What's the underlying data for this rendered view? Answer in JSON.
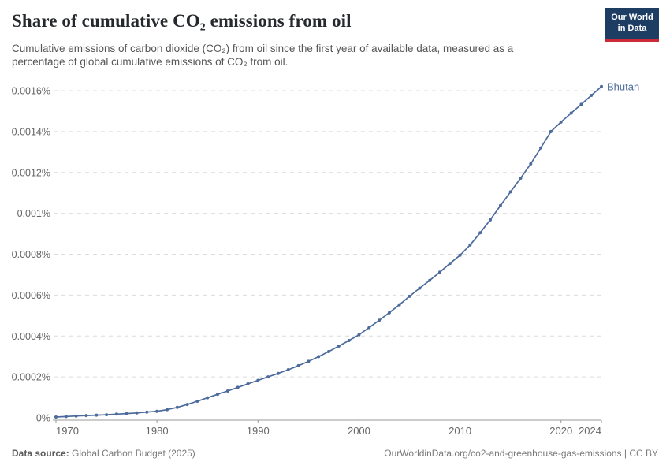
{
  "header": {
    "title": "Share of cumulative CO₂ emissions from oil",
    "subtitle": "Cumulative emissions of carbon dioxide (CO₂) from oil since the first year of available data, measured as a percentage of global cumulative emissions of CO₂ from oil.",
    "logo": {
      "line1": "Our World",
      "line2": "in Data",
      "bg_color": "#1d3d63",
      "accent_color": "#cc2a36"
    }
  },
  "chart_data": {
    "type": "line",
    "title": "Share of cumulative CO₂ emissions from oil",
    "entity_label": "Bhutan",
    "unit": "%",
    "line_color": "#4c6a9c",
    "grid": "dashed",
    "grid_color": "#dcdcdc",
    "axis_color": "#999999",
    "tick_label_color": "#666666",
    "xlim": [
      1970,
      2024
    ],
    "ylim": [
      0,
      0.0016
    ],
    "x_ticks": [
      1970,
      1980,
      1990,
      2000,
      2010,
      2020,
      2024
    ],
    "y_ticks": [
      {
        "value": 0.0,
        "label": "0%"
      },
      {
        "value": 0.0002,
        "label": "0.0002%"
      },
      {
        "value": 0.0004,
        "label": "0.0004%"
      },
      {
        "value": 0.0006,
        "label": "0.0006%"
      },
      {
        "value": 0.0008,
        "label": "0.0008%"
      },
      {
        "value": 0.001,
        "label": "0.001%"
      },
      {
        "value": 0.0012,
        "label": "0.0012%"
      },
      {
        "value": 0.0014,
        "label": "0.0014%"
      },
      {
        "value": 0.0016,
        "label": "0.0016%"
      }
    ],
    "x": [
      1970,
      1971,
      1972,
      1973,
      1974,
      1975,
      1976,
      1977,
      1978,
      1979,
      1980,
      1981,
      1982,
      1983,
      1984,
      1985,
      1986,
      1987,
      1988,
      1989,
      1990,
      1991,
      1992,
      1993,
      1994,
      1995,
      1996,
      1997,
      1998,
      1999,
      2000,
      2001,
      2002,
      2003,
      2004,
      2005,
      2006,
      2007,
      2008,
      2009,
      2010,
      2011,
      2012,
      2013,
      2014,
      2015,
      2016,
      2017,
      2018,
      2019,
      2020,
      2021,
      2022,
      2023,
      2024
    ],
    "values": [
      4e-06,
      6e-06,
      9e-06,
      1.1e-05,
      1.3e-05,
      1.5e-05,
      1.8e-05,
      2.1e-05,
      2.4e-05,
      2.8e-05,
      3.2e-05,
      4e-05,
      5.1e-05,
      6.5e-05,
      8.1e-05,
      9.8e-05,
      0.000115,
      0.000131,
      0.000149,
      0.000166,
      0.000183,
      0.0002,
      0.000217,
      0.000235,
      0.000255,
      0.000276,
      0.000299,
      0.000324,
      0.000351,
      0.000378,
      0.000406,
      0.000441,
      0.000477,
      0.000514,
      0.000553,
      0.000594,
      0.000634,
      0.000672,
      0.000712,
      0.000755,
      0.000795,
      0.000845,
      0.000905,
      0.000968,
      0.001038,
      0.001105,
      0.001172,
      0.001242,
      0.00132,
      0.0014,
      0.001446,
      0.00149,
      0.001533,
      0.001577,
      0.00162
    ]
  },
  "footer": {
    "source_label": "Data source:",
    "source_value": " Global Carbon Budget (2025)",
    "license": "OurWorldinData.org/co2-and-greenhouse-gas-emissions | CC BY"
  }
}
